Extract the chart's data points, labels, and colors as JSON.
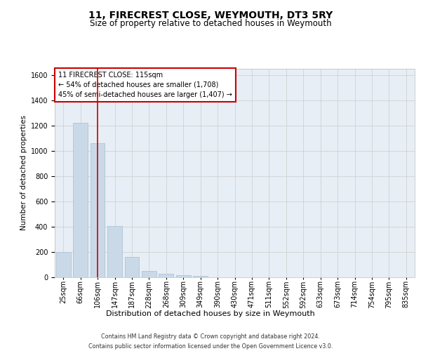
{
  "title": "11, FIRECREST CLOSE, WEYMOUTH, DT3 5RY",
  "subtitle": "Size of property relative to detached houses in Weymouth",
  "xlabel": "Distribution of detached houses by size in Weymouth",
  "ylabel": "Number of detached properties",
  "categories": [
    "25sqm",
    "66sqm",
    "106sqm",
    "147sqm",
    "187sqm",
    "228sqm",
    "268sqm",
    "309sqm",
    "349sqm",
    "390sqm",
    "430sqm",
    "471sqm",
    "511sqm",
    "552sqm",
    "592sqm",
    "633sqm",
    "673sqm",
    "714sqm",
    "754sqm",
    "795sqm",
    "835sqm"
  ],
  "values": [
    200,
    1220,
    1060,
    405,
    160,
    50,
    25,
    15,
    10,
    0,
    0,
    0,
    0,
    0,
    0,
    0,
    0,
    0,
    0,
    0,
    0
  ],
  "bar_color": "#c9d9e8",
  "bar_edge_color": "#a8bfce",
  "redline_index": 2,
  "annotation_line1": "11 FIRECREST CLOSE: 115sqm",
  "annotation_line2": "← 54% of detached houses are smaller (1,708)",
  "annotation_line3": "45% of semi-detached houses are larger (1,407) →",
  "annotation_box_facecolor": "#ffffff",
  "annotation_box_edgecolor": "#cc0000",
  "ylim_max": 1650,
  "yticks": [
    0,
    200,
    400,
    600,
    800,
    1000,
    1200,
    1400,
    1600
  ],
  "grid_color": "#cccccc",
  "plot_bg_color": "#e8eef5",
  "footer": "Contains HM Land Registry data © Crown copyright and database right 2024.\nContains public sector information licensed under the Open Government Licence v3.0.",
  "title_fontsize": 10,
  "subtitle_fontsize": 8.5,
  "ylabel_fontsize": 7.5,
  "xlabel_fontsize": 8,
  "tick_fontsize": 7,
  "annotation_fontsize": 7,
  "footer_fontsize": 5.8
}
